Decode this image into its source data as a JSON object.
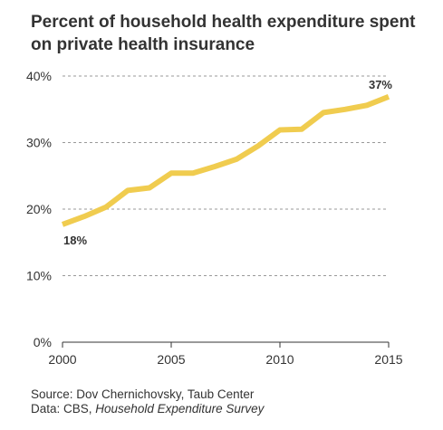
{
  "chart_data": {
    "type": "line",
    "title": "Percent of household health expenditure spent on private health insurance",
    "xlabel": "",
    "ylabel": "",
    "x": [
      2000,
      2001,
      2002,
      2003,
      2004,
      2005,
      2006,
      2007,
      2008,
      2009,
      2010,
      2011,
      2012,
      2013,
      2014,
      2015
    ],
    "series": [
      {
        "values": [
          17.7,
          18.9,
          20.3,
          22.8,
          23.2,
          25.4,
          25.4,
          26.4,
          27.5,
          29.5,
          31.9,
          32.0,
          34.5,
          35.0,
          35.6,
          36.9
        ]
      }
    ],
    "xlim": [
      2000,
      2015
    ],
    "ylim": [
      0,
      40
    ],
    "x_ticks": [
      "2000",
      "2005",
      "2010",
      "2015"
    ],
    "y_ticks": [
      "0%",
      "10%",
      "20%",
      "30%",
      "40%"
    ],
    "grid": "horizontal dashed",
    "annotations": {
      "start_label": "18%",
      "end_label": "37%"
    },
    "colors": {
      "line": "#f0cc4f",
      "grid": "#999999",
      "axis": "#333333",
      "text": "#333333"
    }
  },
  "source": {
    "source_line": "Source: Dov Chernichovsky, Taub Center",
    "data_prefix": "Data: CBS, ",
    "data_title": "Household Expenditure Survey"
  }
}
